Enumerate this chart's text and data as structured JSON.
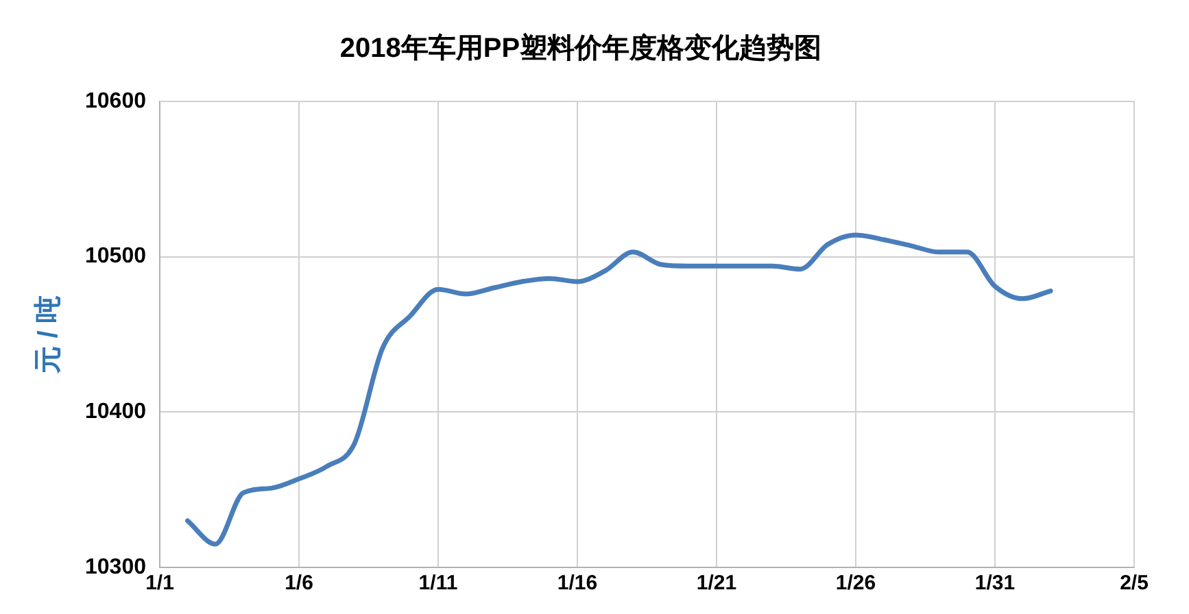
{
  "chart_data": {
    "type": "line",
    "title": "2018年车用PP塑料价年度格变化趋势图",
    "ylabel": "元 / 吨",
    "x": [
      "--01-02",
      "--01-03",
      "--01-04",
      "--01-05",
      "--01-06",
      "--01-07",
      "--01-08",
      "--01-09",
      "--01-10",
      "--01-11",
      "--01-12",
      "--01-13",
      "--01-14",
      "--01-15",
      "--01-16",
      "--01-17",
      "--01-18",
      "--01-19",
      "--01-20",
      "--01-21",
      "--01-22",
      "--01-23",
      "--01-24",
      "--01-25",
      "--01-26",
      "--01-27",
      "--01-28",
      "--01-29",
      "--01-30",
      "--01-31",
      "--02-01",
      "--02-02"
    ],
    "series": [
      {
        "color": "#4a7ebb",
        "values": [
          10330,
          10315,
          10348,
          10351,
          10357,
          10365,
          10380,
          10441,
          10462,
          10479,
          10476,
          10480,
          10484,
          10486,
          10484,
          10491,
          10503,
          10495,
          10494,
          10494,
          10494,
          10494,
          10492,
          10508,
          10514,
          10511,
          10507,
          10503,
          10503,
          10481,
          10473,
          10478
        ]
      }
    ],
    "xlim": [
      "--01-01",
      "--02-05"
    ],
    "xticks": [
      {
        "value": "--01-01",
        "label": "1/1"
      },
      {
        "value": "--01-06",
        "label": "1/6"
      },
      {
        "value": "--01-11",
        "label": "1/11"
      },
      {
        "value": "--01-16",
        "label": "1/16"
      },
      {
        "value": "--01-21",
        "label": "1/21"
      },
      {
        "value": "--01-26",
        "label": "1/26"
      },
      {
        "value": "--01-31",
        "label": "1/31"
      },
      {
        "value": "--02-05",
        "label": "2/5"
      }
    ],
    "ylim": [
      10300,
      10600
    ],
    "yticks": [
      10300,
      10400,
      10500,
      10600
    ],
    "grid": true,
    "legend": false,
    "marker": "none",
    "line_style": "solid"
  }
}
